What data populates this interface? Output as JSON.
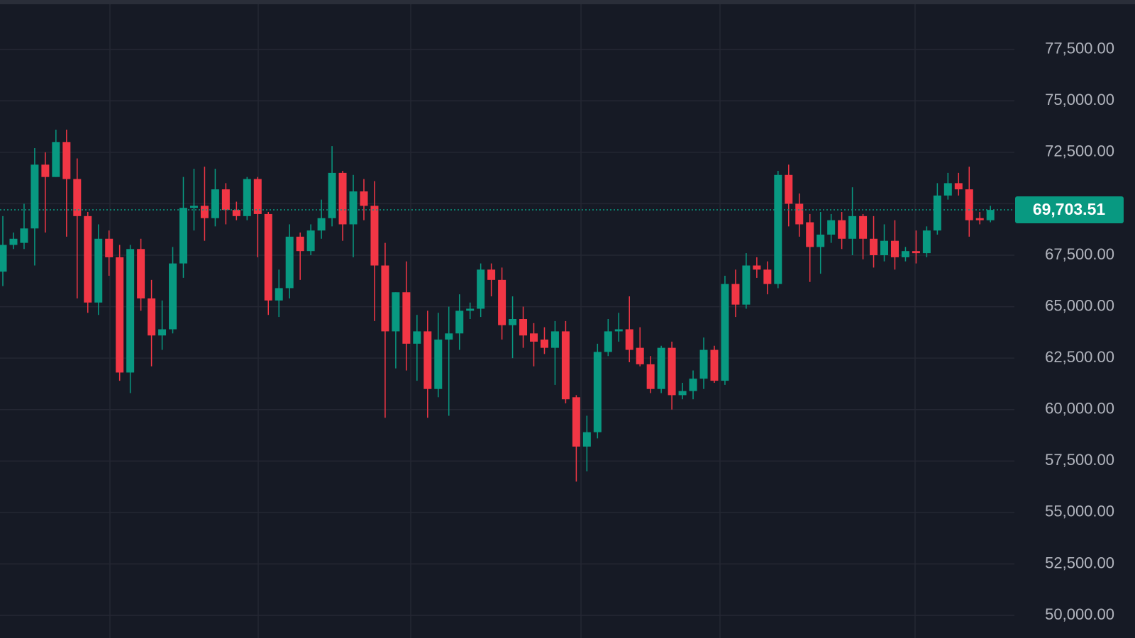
{
  "chart_data": {
    "type": "candlestick",
    "up_color": "#089981",
    "down_color": "#f23645",
    "open": [
      66700,
      68000,
      68100,
      68800,
      71900,
      71300,
      73000,
      71200,
      69400,
      65200,
      68300,
      67400,
      61800,
      67800,
      65400,
      63600,
      63900,
      67100,
      69800,
      69900,
      69300,
      70700,
      69700,
      69400,
      71200,
      69500,
      65300,
      65900,
      68400,
      67700,
      68700,
      69300,
      71500,
      69000,
      70600,
      69900,
      67000,
      63800,
      65700,
      63200,
      63800,
      61000,
      63400,
      63700,
      64800,
      64900,
      66800,
      66300,
      64100,
      64400,
      63700,
      63400,
      63000,
      63800,
      60600,
      58200,
      58900,
      62800,
      63800,
      63900,
      63000,
      62200,
      61000,
      63000,
      60700,
      60900,
      61500,
      62900,
      61400,
      66100,
      65100,
      67000,
      66800,
      66100,
      71400,
      70000,
      69100,
      67900,
      68500,
      69200,
      68300,
      69400,
      68300,
      67500,
      68200,
      67400,
      67700,
      67600,
      68700,
      70400,
      71000,
      70700,
      69300,
      69200
    ],
    "high": [
      69400,
      68600,
      70000,
      72700,
      72500,
      73600,
      73600,
      72200,
      69600,
      69000,
      68700,
      68000,
      68000,
      68300,
      66300,
      65300,
      67900,
      71300,
      71700,
      71800,
      71700,
      71000,
      70100,
      71300,
      71300,
      69600,
      66800,
      69000,
      68600,
      69000,
      70200,
      72800,
      71600,
      71400,
      71200,
      71100,
      68100,
      65700,
      67200,
      64600,
      64800,
      64700,
      65000,
      65600,
      65200,
      67100,
      67100,
      66900,
      65500,
      65000,
      64200,
      64000,
      64300,
      64300,
      60700,
      59700,
      63200,
      64400,
      64700,
      65500,
      64000,
      62600,
      63100,
      63300,
      61300,
      61900,
      63500,
      63100,
      66500,
      66800,
      67600,
      67400,
      67200,
      71600,
      71900,
      70500,
      69500,
      69600,
      69500,
      69600,
      70800,
      69500,
      69400,
      69000,
      69200,
      67900,
      68700,
      68900,
      71000,
      71500,
      71500,
      71800,
      69600,
      69900
    ],
    "low": [
      66000,
      67800,
      67800,
      67000,
      68600,
      71300,
      68400,
      65400,
      64700,
      64600,
      66500,
      61400,
      60800,
      64800,
      62100,
      62900,
      63700,
      66400,
      68700,
      68200,
      68900,
      69000,
      69200,
      69200,
      67400,
      64600,
      64500,
      65400,
      66300,
      67500,
      68300,
      68900,
      68200,
      67400,
      69200,
      64300,
      59600,
      62000,
      61900,
      61400,
      59600,
      60600,
      59700,
      62900,
      64400,
      64500,
      65500,
      63400,
      62500,
      63000,
      62100,
      62700,
      61200,
      60300,
      56500,
      57000,
      58600,
      62600,
      63300,
      62300,
      62100,
      60800,
      60800,
      60000,
      60500,
      60500,
      61000,
      61300,
      61200,
      64500,
      64900,
      66400,
      65600,
      65900,
      68900,
      68400,
      66200,
      66600,
      68100,
      67800,
      67500,
      67300,
      66900,
      67200,
      66800,
      67200,
      67100,
      67400,
      68500,
      70200,
      70400,
      68400,
      69000,
      69100
    ],
    "close": [
      68000,
      68300,
      68800,
      71900,
      71300,
      73000,
      71200,
      69400,
      65200,
      68300,
      67400,
      61800,
      67800,
      65400,
      63600,
      63900,
      67100,
      69800,
      69900,
      69300,
      70700,
      69700,
      69400,
      71200,
      69500,
      65300,
      65900,
      68400,
      67700,
      68700,
      69300,
      71500,
      69000,
      70600,
      69900,
      67000,
      63800,
      65700,
      63200,
      63800,
      61000,
      63400,
      63700,
      64800,
      64900,
      66800,
      66300,
      64100,
      64400,
      63600,
      63300,
      63000,
      63800,
      60500,
      58200,
      58900,
      62800,
      63800,
      63900,
      62900,
      62200,
      61000,
      63000,
      60700,
      60900,
      61500,
      62900,
      61400,
      66100,
      65100,
      67000,
      66800,
      66100,
      71400,
      70000,
      69000,
      67900,
      68500,
      69200,
      68300,
      69400,
      68300,
      67500,
      68200,
      67400,
      67700,
      67600,
      68700,
      70400,
      71000,
      70700,
      69200,
      69200,
      69700
    ],
    "ylim": [
      48900,
      79900
    ],
    "yticks": [
      {
        "value": 50000,
        "label": "50,000.00"
      },
      {
        "value": 52500,
        "label": "52,500.00"
      },
      {
        "value": 55000,
        "label": "55,000.00"
      },
      {
        "value": 57500,
        "label": "57,500.00"
      },
      {
        "value": 60000,
        "label": "60,000.00"
      },
      {
        "value": 62500,
        "label": "62,500.00"
      },
      {
        "value": 65000,
        "label": "65,000.00"
      },
      {
        "value": 67500,
        "label": "67,500.00"
      },
      {
        "value": 70000,
        "label": "70,000.00"
      },
      {
        "value": 72500,
        "label": "72,500.00"
      },
      {
        "value": 75000,
        "label": "75,000.00"
      },
      {
        "value": 77500,
        "label": "77,500.00"
      }
    ],
    "grid": true,
    "current_price": {
      "value": 69703.51,
      "label": "69,703.51"
    }
  }
}
